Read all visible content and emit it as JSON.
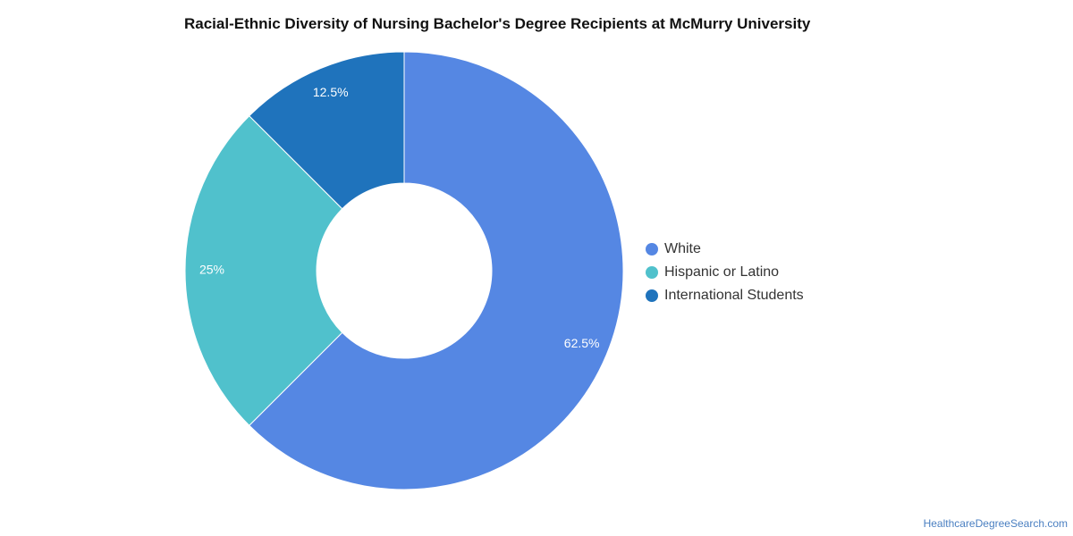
{
  "chart_data": {
    "type": "pie",
    "variant": "donut",
    "title": "Racial-Ethnic Diversity of Nursing Bachelor's Degree Recipients at McMurry University",
    "categories": [
      "White",
      "Hispanic or Latino",
      "International Students"
    ],
    "values": [
      62.5,
      25,
      12.5
    ],
    "labels": [
      "62.5%",
      "25%",
      "12.5%"
    ],
    "colors": [
      "#5587e3",
      "#50c1cc",
      "#1f73bc"
    ],
    "legend_position": "right"
  },
  "source": "HealthcareDegreeSearch.com"
}
